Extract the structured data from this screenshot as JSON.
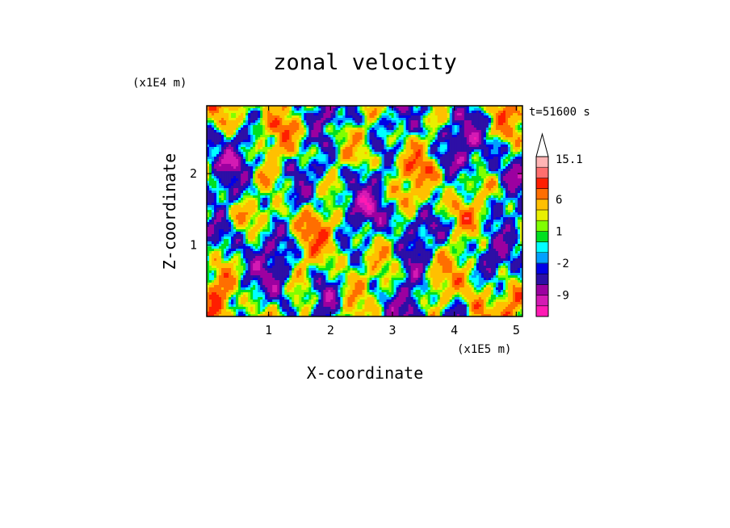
{
  "chart_data": {
    "type": "heatmap",
    "title": "zonal velocity",
    "xlabel": "X-coordinate",
    "ylabel": "Z-coordinate",
    "x_scale_label": "(x1E5 m)",
    "y_scale_label": "(x1E4 m)",
    "time_label": "t=51600 s",
    "xlim": [
      0,
      5.1
    ],
    "ylim": [
      0,
      2.95
    ],
    "x_ticks": [
      1,
      2,
      3,
      4,
      5
    ],
    "y_ticks": [
      1,
      2
    ],
    "colorbar": {
      "levels": [
        -15,
        -12,
        -9,
        -6,
        -3,
        -2,
        -1,
        0,
        1,
        2,
        3,
        6,
        9,
        12,
        15.1
      ],
      "colors": [
        "#ff1ab4",
        "#d41ab4",
        "#9c00a0",
        "#2d0fa6",
        "#0000e6",
        "#00a0ff",
        "#00ffff",
        "#00e020",
        "#80ff00",
        "#e8f000",
        "#ffc000",
        "#ff6e00",
        "#ff1e00",
        "#ff6e6e",
        "#ffb4b4"
      ],
      "labels": [
        {
          "text": "15.1",
          "value": 15.1
        },
        {
          "text": "6",
          "value": 6
        },
        {
          "text": "1",
          "value": 1
        },
        {
          "text": "-2",
          "value": -2
        },
        {
          "text": "-9",
          "value": -9
        }
      ],
      "extend": "max"
    }
  }
}
